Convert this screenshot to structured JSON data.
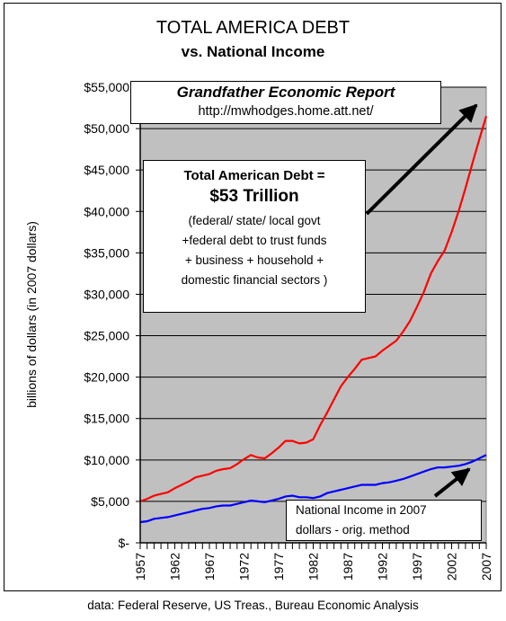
{
  "chart_data": {
    "type": "line",
    "title": "TOTAL AMERICA DEBT",
    "subtitle": "vs. National Income",
    "xlabel": "",
    "ylabel": "billions of dollars (in 2007 dollars)",
    "xlim": [
      1957,
      2007
    ],
    "ylim": [
      0,
      55000
    ],
    "y_ticks": [
      0,
      5000,
      10000,
      15000,
      20000,
      25000,
      30000,
      35000,
      40000,
      45000,
      50000,
      55000
    ],
    "y_tick_labels": [
      "$-",
      "$5,000",
      "$10,000",
      "$15,000",
      "$20,000",
      "$25,000",
      "$30,000",
      "$35,000",
      "$40,000",
      "$45,000",
      "$50,000",
      "$55,000"
    ],
    "x_tick_labels": [
      "1957",
      "1962",
      "1967",
      "1972",
      "1977",
      "1982",
      "1987",
      "1992",
      "1997",
      "2002",
      "2007"
    ],
    "grid": "horizontal",
    "background": "#c0c0c0",
    "series": [
      {
        "color": "#ff0000",
        "x": [
          1957,
          1958,
          1959,
          1960,
          1961,
          1962,
          1963,
          1964,
          1965,
          1966,
          1967,
          1968,
          1969,
          1970,
          1971,
          1972,
          1973,
          1974,
          1975,
          1976,
          1977,
          1978,
          1979,
          1980,
          1981,
          1982,
          1983,
          1984,
          1985,
          1986,
          1987,
          1988,
          1989,
          1990,
          1991,
          1992,
          1993,
          1994,
          1995,
          1996,
          1997,
          1998,
          1999,
          2000,
          2001,
          2002,
          2003,
          2004,
          2005,
          2006,
          2007
        ],
        "values": [
          5000,
          5300,
          5700,
          5900,
          6100,
          6600,
          7000,
          7400,
          7900,
          8100,
          8300,
          8700,
          8900,
          9000,
          9500,
          10100,
          10600,
          10300,
          10200,
          10800,
          11500,
          12300,
          12300,
          12000,
          12100,
          12500,
          14200,
          15700,
          17300,
          18900,
          20000,
          21000,
          22100,
          22300,
          22500,
          23200,
          23800,
          24400,
          25500,
          26800,
          28500,
          30300,
          32500,
          34000,
          35300,
          37500,
          40000,
          42800,
          45800,
          48700,
          51500
        ]
      },
      {
        "color": "#0000ff",
        "x": [
          1957,
          1958,
          1959,
          1960,
          1961,
          1962,
          1963,
          1964,
          1965,
          1966,
          1967,
          1968,
          1969,
          1970,
          1971,
          1972,
          1973,
          1974,
          1975,
          1976,
          1977,
          1978,
          1979,
          1980,
          1981,
          1982,
          1983,
          1984,
          1985,
          1986,
          1987,
          1988,
          1989,
          1990,
          1991,
          1992,
          1993,
          1994,
          1995,
          1996,
          1997,
          1998,
          1999,
          2000,
          2001,
          2002,
          2003,
          2004,
          2005,
          2006,
          2007
        ],
        "values": [
          2500,
          2600,
          2900,
          3000,
          3100,
          3300,
          3500,
          3700,
          3900,
          4100,
          4200,
          4400,
          4500,
          4500,
          4700,
          4900,
          5100,
          5000,
          4900,
          5100,
          5300,
          5600,
          5700,
          5500,
          5500,
          5400,
          5600,
          6000,
          6200,
          6400,
          6600,
          6800,
          7000,
          7000,
          7000,
          7200,
          7300,
          7500,
          7700,
          8000,
          8300,
          8600,
          8900,
          9100,
          9100,
          9200,
          9300,
          9500,
          9800,
          10200,
          10600
        ]
      }
    ],
    "annotations": {
      "report_title": "Grandfather Economic Report",
      "report_url": "http://mwhodges.home.att.net/",
      "debt_heading": "Total American Debt =",
      "debt_value": "$53 Trillion",
      "debt_lines": [
        "(federal/ state/ local govt",
        "+federal debt to trust funds",
        "+ business + household +",
        "domestic financial sectors )"
      ],
      "income_lines": [
        "National Income in 2007",
        "dollars - orig. method"
      ]
    },
    "source": "data: Federal Reserve, US Treas., Bureau Economic Analysis"
  }
}
